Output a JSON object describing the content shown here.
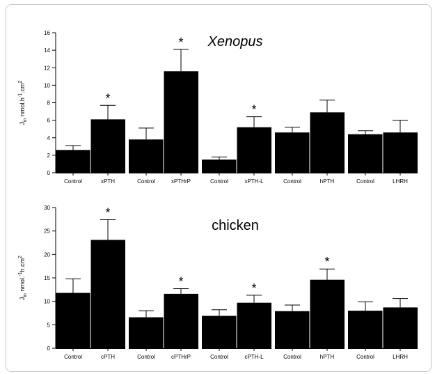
{
  "chart_data": [
    {
      "type": "bar",
      "title": "Xenopus",
      "ylabel": "J₀ nmol.h⁻¹.cm²",
      "ylabel_parts": {
        "main": "J",
        "sub": "in",
        "unit": " nmol.h",
        "sup1": "-1",
        "mid": ".cm",
        "sup2": "2"
      },
      "ylim": [
        0,
        16
      ],
      "yticks": [
        0,
        2,
        4,
        6,
        8,
        10,
        12,
        14,
        16
      ],
      "groups": [
        {
          "bars": [
            {
              "label": "Control",
              "value": 2.6,
              "error": 0.5,
              "sig": ""
            },
            {
              "label": "xPTH",
              "value": 6.1,
              "error": 1.6,
              "sig": "*"
            }
          ]
        },
        {
          "bars": [
            {
              "label": "Control",
              "value": 3.8,
              "error": 1.3,
              "sig": ""
            },
            {
              "label": "xPTHrP",
              "value": 11.6,
              "error": 2.5,
              "sig": "*"
            }
          ]
        },
        {
          "bars": [
            {
              "label": "Control",
              "value": 1.5,
              "error": 0.3,
              "sig": ""
            },
            {
              "label": "xPTH-L",
              "value": 5.2,
              "error": 1.2,
              "sig": "*"
            }
          ]
        },
        {
          "bars": [
            {
              "label": "Control",
              "value": 4.6,
              "error": 0.6,
              "sig": ""
            },
            {
              "label": "hPTH",
              "value": 6.9,
              "error": 1.4,
              "sig": ""
            }
          ]
        },
        {
          "bars": [
            {
              "label": "Control",
              "value": 4.4,
              "error": 0.4,
              "sig": ""
            },
            {
              "label": "LHRH",
              "value": 4.6,
              "error": 1.4,
              "sig": ""
            }
          ]
        }
      ]
    },
    {
      "type": "bar",
      "title": "chicken",
      "ylabel_parts": {
        "main": "J",
        "sub": "in",
        "unit": " nmol.",
        "sup1": "-1",
        "mid": "h.cm",
        "sup2": "2"
      },
      "ylim": [
        0,
        30
      ],
      "yticks": [
        0,
        5,
        10,
        15,
        20,
        25,
        30
      ],
      "groups": [
        {
          "bars": [
            {
              "label": "Control",
              "value": 11.8,
              "error": 3.0,
              "sig": ""
            },
            {
              "label": "cPTH",
              "value": 23.1,
              "error": 4.3,
              "sig": "*"
            }
          ]
        },
        {
          "bars": [
            {
              "label": "Control",
              "value": 6.6,
              "error": 1.4,
              "sig": ""
            },
            {
              "label": "cPTHrP",
              "value": 11.6,
              "error": 1.1,
              "sig": "*"
            }
          ]
        },
        {
          "bars": [
            {
              "label": "Control",
              "value": 6.9,
              "error": 1.3,
              "sig": ""
            },
            {
              "label": "cPTH-L",
              "value": 9.7,
              "error": 1.6,
              "sig": "*"
            }
          ]
        },
        {
          "bars": [
            {
              "label": "Control",
              "value": 7.9,
              "error": 1.3,
              "sig": ""
            },
            {
              "label": "hPTH",
              "value": 14.6,
              "error": 2.3,
              "sig": "*"
            }
          ]
        },
        {
          "bars": [
            {
              "label": "Control",
              "value": 8.0,
              "error": 1.9,
              "sig": ""
            },
            {
              "label": "LHRH",
              "value": 8.7,
              "error": 1.9,
              "sig": ""
            }
          ]
        }
      ]
    }
  ]
}
